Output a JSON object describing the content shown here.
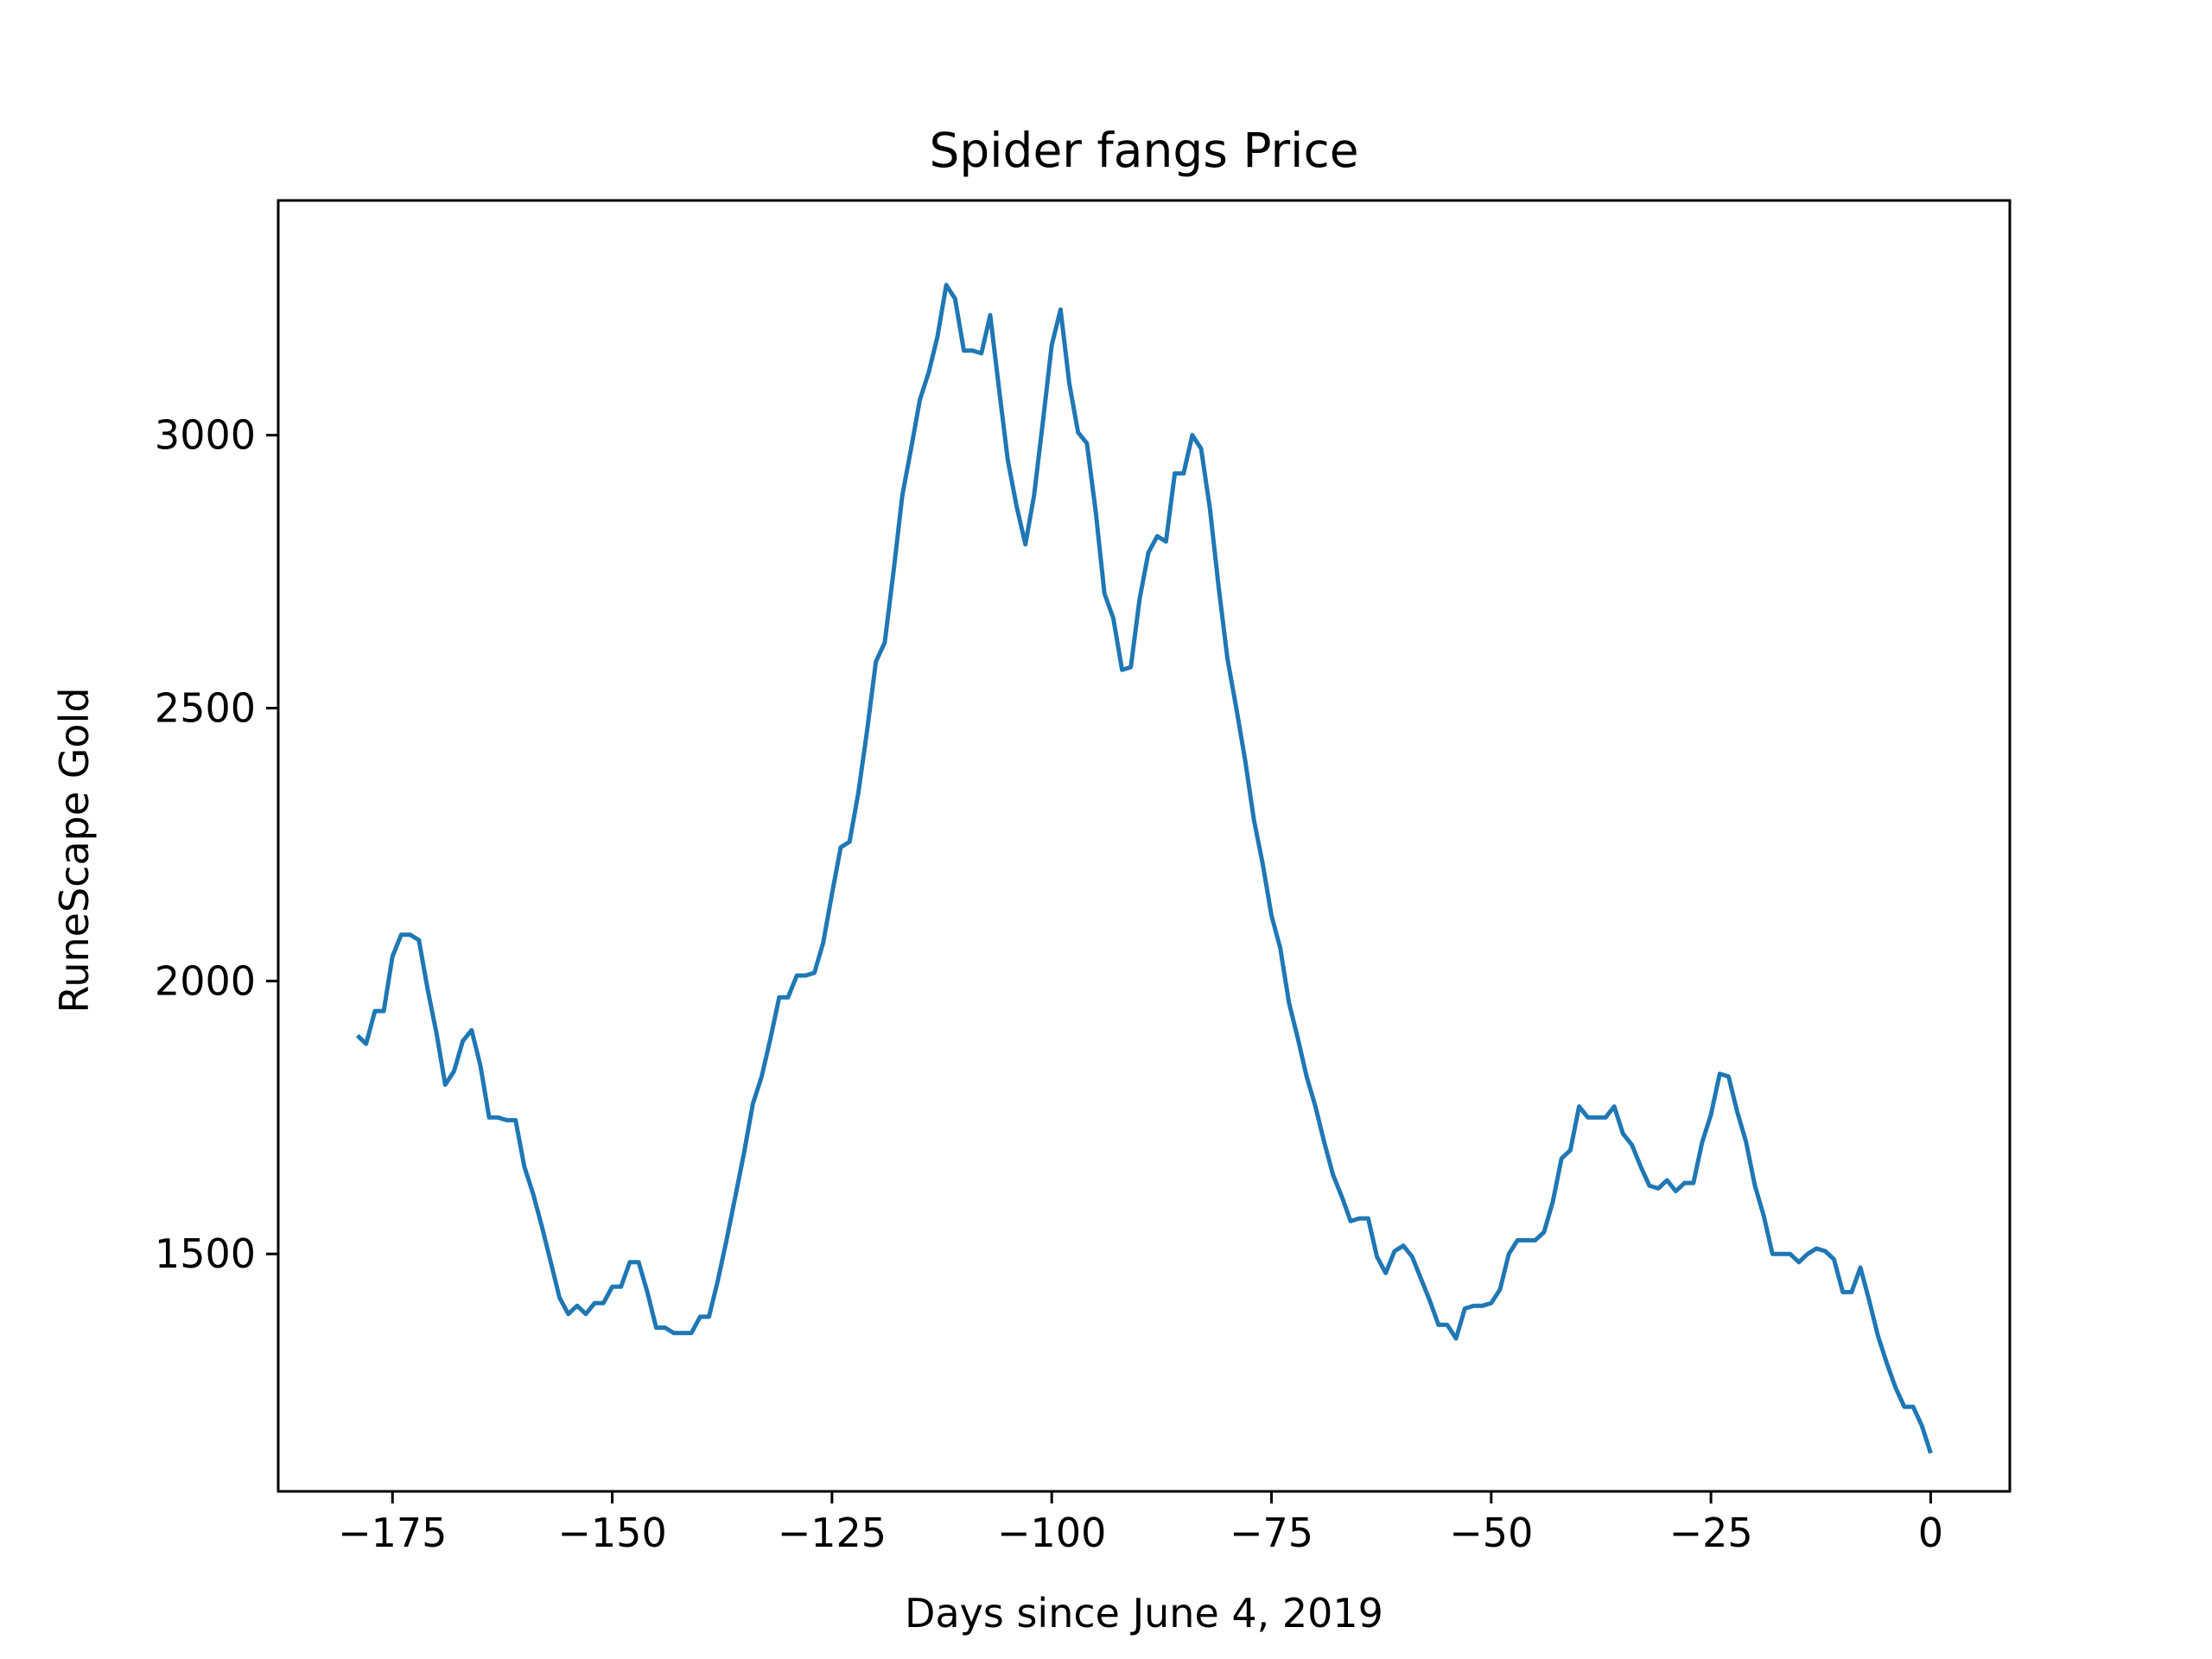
{
  "chart_data": {
    "type": "line",
    "title": "Spider fangs Price",
    "xlabel": "Days since June 4, 2019",
    "ylabel": "RuneScape Gold",
    "xlim": [
      -188,
      9
    ],
    "ylim": [
      1065,
      3430
    ],
    "x_ticks": [
      -175,
      -150,
      -125,
      -100,
      -75,
      -50,
      -25,
      0
    ],
    "x_tick_labels": [
      "−175",
      "−150",
      "−125",
      "−100",
      "−75",
      "−50",
      "−25",
      "0"
    ],
    "y_ticks": [
      1500,
      2000,
      2500,
      3000
    ],
    "y_tick_labels": [
      "1500",
      "2000",
      "2500",
      "3000"
    ],
    "grid": false,
    "legend": "none",
    "series": [
      {
        "color": "#1f77b4",
        "x": [
          -179,
          -178,
          -177,
          -176,
          -175,
          -174,
          -173,
          -172,
          -171,
          -170,
          -169,
          -168,
          -167,
          -166,
          -165,
          -164,
          -163,
          -162,
          -161,
          -160,
          -159,
          -158,
          -157,
          -156,
          -155,
          -154,
          -153,
          -152,
          -151,
          -150,
          -149,
          -148,
          -147,
          -146,
          -145,
          -144,
          -143,
          -142,
          -141,
          -140,
          -139,
          -138,
          -137,
          -136,
          -135,
          -134,
          -133,
          -132,
          -131,
          -130,
          -129,
          -128,
          -127,
          -126,
          -125,
          -124,
          -123,
          -122,
          -121,
          -120,
          -119,
          -118,
          -117,
          -116,
          -115,
          -114,
          -113,
          -112,
          -111,
          -110,
          -109,
          -108,
          -107,
          -106,
          -105,
          -104,
          -103,
          -102,
          -101,
          -100,
          -99,
          -98,
          -97,
          -96,
          -95,
          -94,
          -93,
          -92,
          -91,
          -90,
          -89,
          -88,
          -87,
          -86,
          -85,
          -84,
          -83,
          -82,
          -81,
          -80,
          -79,
          -78,
          -77,
          -76,
          -75,
          -74,
          -73,
          -72,
          -71,
          -70,
          -69,
          -68,
          -67,
          -66,
          -65,
          -64,
          -63,
          -62,
          -61,
          -60,
          -59,
          -58,
          -57,
          -56,
          -55,
          -54,
          -53,
          -52,
          -51,
          -50,
          -49,
          -48,
          -47,
          -46,
          -45,
          -44,
          -43,
          -42,
          -41,
          -40,
          -39,
          -38,
          -37,
          -36,
          -35,
          -34,
          -33,
          -32,
          -31,
          -30,
          -29,
          -28,
          -27,
          -26,
          -25,
          -24,
          -23,
          -22,
          -21,
          -20,
          -19,
          -18,
          -17,
          -16,
          -15,
          -14,
          -13,
          -12,
          -11,
          -10,
          -9,
          -8,
          -7,
          -6,
          -5,
          -4,
          -3,
          -2,
          -1,
          0
        ],
        "y": [
          1900,
          1885,
          1945,
          1945,
          2045,
          2085,
          2085,
          2075,
          1985,
          1905,
          1810,
          1835,
          1890,
          1910,
          1845,
          1750,
          1750,
          1745,
          1745,
          1660,
          1610,
          1550,
          1485,
          1420,
          1390,
          1405,
          1390,
          1410,
          1410,
          1440,
          1440,
          1485,
          1485,
          1430,
          1365,
          1365,
          1355,
          1355,
          1355,
          1385,
          1385,
          1450,
          1525,
          1605,
          1685,
          1775,
          1825,
          1895,
          1970,
          1970,
          2010,
          2010,
          2015,
          2070,
          2160,
          2245,
          2255,
          2345,
          2460,
          2585,
          2620,
          2750,
          2890,
          2975,
          3065,
          3115,
          3180,
          3275,
          3250,
          3155,
          3155,
          3150,
          3220,
          3085,
          2955,
          2870,
          2800,
          2890,
          3025,
          3165,
          3230,
          3095,
          3005,
          2985,
          2860,
          2710,
          2665,
          2570,
          2575,
          2700,
          2785,
          2815,
          2805,
          2930,
          2930,
          3000,
          2975,
          2865,
          2720,
          2590,
          2500,
          2405,
          2295,
          2215,
          2120,
          2060,
          1960,
          1895,
          1825,
          1770,
          1705,
          1645,
          1605,
          1560,
          1565,
          1565,
          1495,
          1465,
          1505,
          1515,
          1495,
          1455,
          1415,
          1370,
          1370,
          1345,
          1400,
          1405,
          1405,
          1410,
          1435,
          1500,
          1525,
          1525,
          1525,
          1540,
          1595,
          1675,
          1690,
          1770,
          1750,
          1750,
          1750,
          1770,
          1720,
          1700,
          1660,
          1625,
          1620,
          1635,
          1615,
          1630,
          1630,
          1705,
          1755,
          1830,
          1825,
          1760,
          1705,
          1625,
          1570,
          1500,
          1500,
          1500,
          1485,
          1500,
          1510,
          1505,
          1490,
          1430,
          1430,
          1475,
          1415,
          1350,
          1300,
          1255,
          1220,
          1220,
          1185,
          1135
        ]
      }
    ]
  }
}
